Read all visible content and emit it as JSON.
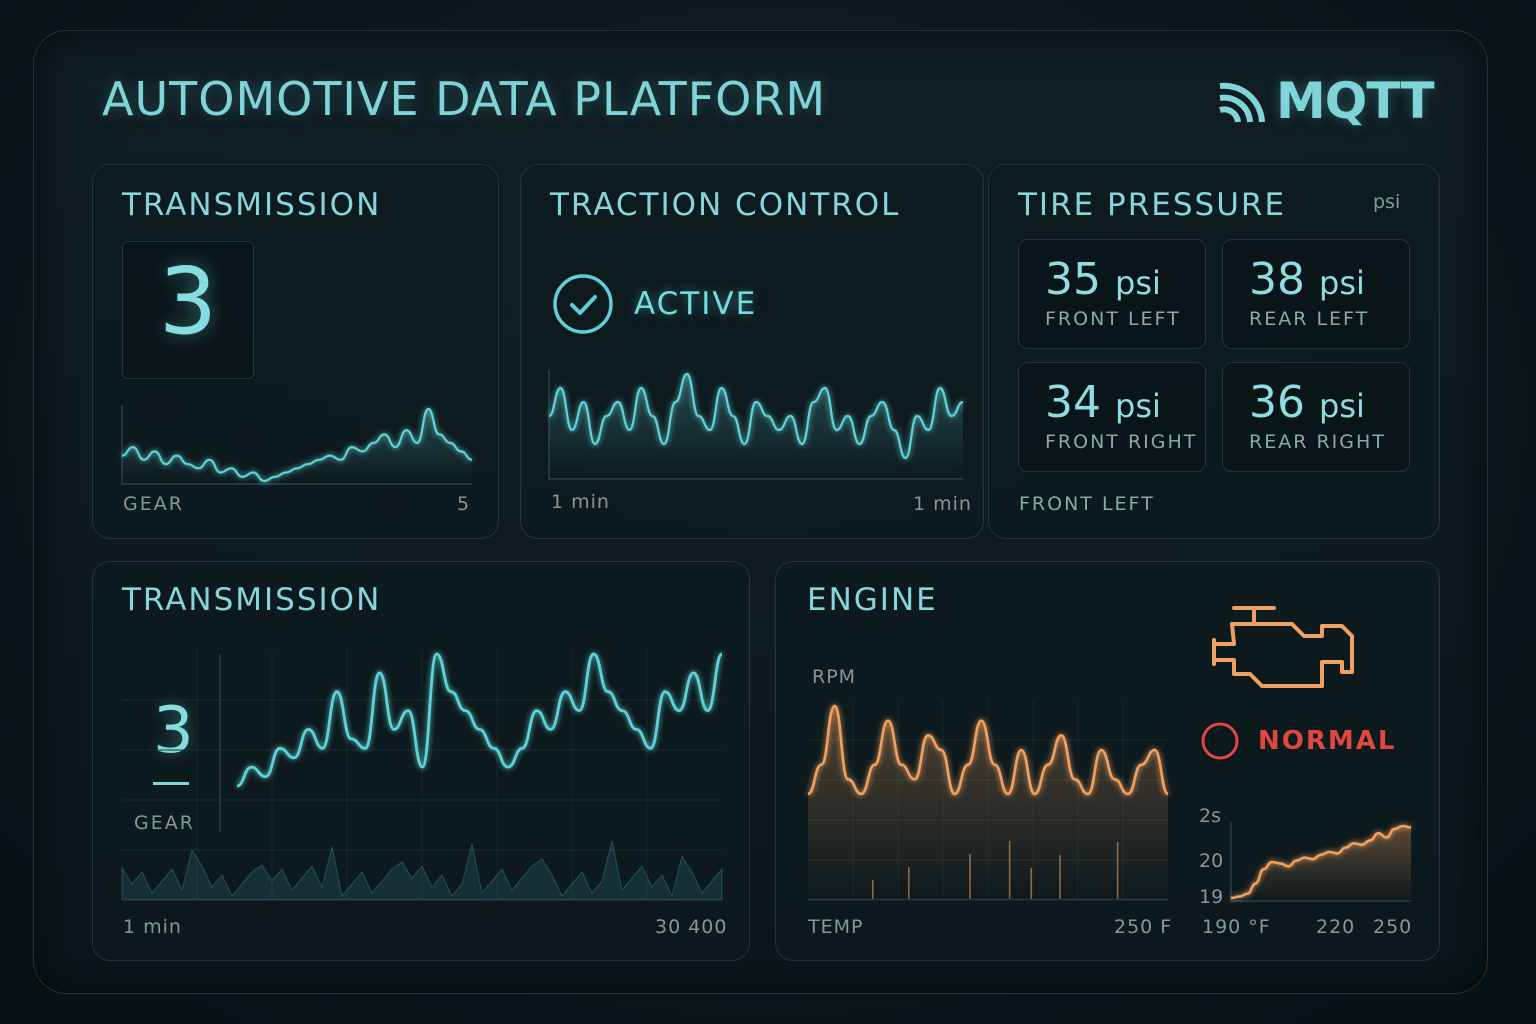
{
  "header": {
    "title": "AUTOMOTIVE DATA PLATFORM",
    "brand": "MQTT",
    "brand_icon": "mqtt-signal-icon"
  },
  "colors": {
    "accent": "#7fd3d9",
    "orange": "#f0a060",
    "alert": "#e0473e",
    "background": "#0c171b"
  },
  "transmission_card": {
    "title": "TRANSMISSION",
    "gear_value": "3",
    "axis_left": "GEAR",
    "axis_right": "5",
    "chart_data": {
      "type": "line",
      "series": [
        {
          "values": [
            3.2,
            3.4,
            3.1,
            3.3,
            3.0,
            3.2,
            3.0,
            2.9,
            3.1,
            2.8,
            2.9,
            2.7,
            2.8,
            2.6,
            2.7,
            2.8,
            2.9,
            3.0,
            3.1,
            3.2,
            3.1,
            3.4,
            3.3,
            3.5,
            3.7,
            3.4,
            3.8,
            3.5,
            4.3,
            3.7,
            3.5,
            3.3,
            3.1
          ]
        }
      ]
    }
  },
  "traction_card": {
    "title": "TRACTION CONTROL",
    "status": "ACTIVE",
    "status_icon": "check-circle-icon",
    "axis_left": "1 min",
    "axis_right": "1 min",
    "chart_data": {
      "type": "line",
      "series": [
        {
          "values": [
            6,
            8,
            5,
            7,
            4,
            6,
            7,
            5,
            8,
            6,
            4,
            7,
            9,
            6,
            5,
            8,
            6,
            4,
            7,
            6,
            5,
            6,
            4,
            7,
            8,
            5,
            6,
            4,
            6,
            7,
            5,
            3,
            6,
            5,
            8,
            6,
            7
          ]
        }
      ]
    }
  },
  "tire_card": {
    "title": "TIRE PRESSURE",
    "unit_label": "psi",
    "tires": [
      {
        "value": "35",
        "unit": "psi",
        "position": "FRONT LEFT"
      },
      {
        "value": "38",
        "unit": "psi",
        "position": "REAR LEFT"
      },
      {
        "value": "34",
        "unit": "psi",
        "position": "FRONT RIGHT"
      },
      {
        "value": "36",
        "unit": "psi",
        "position": "REAR RIGHT"
      }
    ],
    "footer": "FRONT LEFT"
  },
  "transmission_detail_card": {
    "title": "TRANSMISSION",
    "gear_value": "3",
    "gear_label": "GEAR",
    "axis_left": "1 min",
    "axis_right": "30 400",
    "chart_data": {
      "type": "line",
      "series": [
        {
          "values": [
            1,
            2,
            1.5,
            3,
            2.5,
            4,
            3,
            6,
            3.5,
            3,
            7,
            4,
            5,
            2,
            8,
            6,
            5,
            4,
            3,
            2,
            3,
            5,
            4,
            6,
            5,
            8,
            6,
            5,
            4,
            3,
            6,
            5,
            7,
            5,
            8
          ]
        }
      ]
    }
  },
  "engine_card": {
    "title": "ENGINE",
    "rpm_label": "RPM",
    "status": "NORMAL",
    "engine_icon": "check-engine-icon",
    "status_icon": "status-circle-icon",
    "temp_label": "TEMP",
    "temp_max": "250 F",
    "rpm_chart": {
      "type": "line",
      "series": [
        {
          "values": [
            3,
            5,
            9,
            4,
            3,
            5,
            8,
            5,
            4,
            7,
            6,
            3,
            5,
            8,
            5,
            3,
            6,
            3,
            5,
            7,
            4,
            3,
            6,
            4,
            3,
            5,
            6,
            3
          ]
        }
      ]
    },
    "temp_chart": {
      "type": "area",
      "ticks_y": [
        "2s",
        "20",
        "19"
      ],
      "ticks_x": [
        "190 °F",
        "220",
        "250"
      ],
      "series": [
        {
          "values": [
            190,
            191,
            193,
            200,
            210,
            215,
            214,
            212,
            216,
            218,
            217,
            220,
            222,
            221,
            225,
            228,
            227,
            230,
            235,
            232,
            238,
            240,
            239
          ]
        }
      ]
    }
  }
}
